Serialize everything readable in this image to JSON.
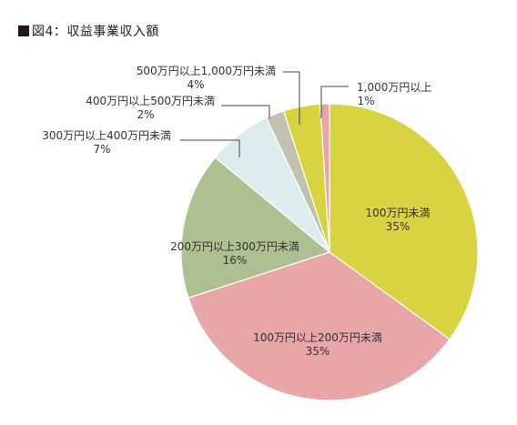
{
  "chart_data": {
    "type": "pie",
    "title": "図4：収益事業収入額",
    "slices": [
      {
        "label": "100万円未満",
        "percent_label": "35%",
        "value": 35,
        "color": "#d8d341",
        "label_placement": "inside"
      },
      {
        "label": "100万円以上200万円未満",
        "percent_label": "35%",
        "value": 35,
        "color": "#e8a6a8",
        "label_placement": "inside"
      },
      {
        "label": "200万円以上300万円未満",
        "percent_label": "16%",
        "value": 16,
        "color": "#afc090",
        "label_placement": "inside"
      },
      {
        "label": "300万円以上400万円未満",
        "percent_label": "7%",
        "value": 7,
        "color": "#dcecec",
        "label_placement": "callout"
      },
      {
        "label": "400万円以上500万円未満",
        "percent_label": "2%",
        "value": 2,
        "color": "#c2c2b0",
        "label_placement": "callout"
      },
      {
        "label": "500万円以上1,000万円未満",
        "percent_label": "4%",
        "value": 4,
        "color": "#d8d341",
        "label_placement": "callout"
      },
      {
        "label": "1,000万円以上",
        "percent_label": "1%",
        "value": 1,
        "color": "#e8a6a8",
        "label_placement": "callout"
      }
    ],
    "start_angle_deg": 0,
    "direction": "clockwise"
  }
}
